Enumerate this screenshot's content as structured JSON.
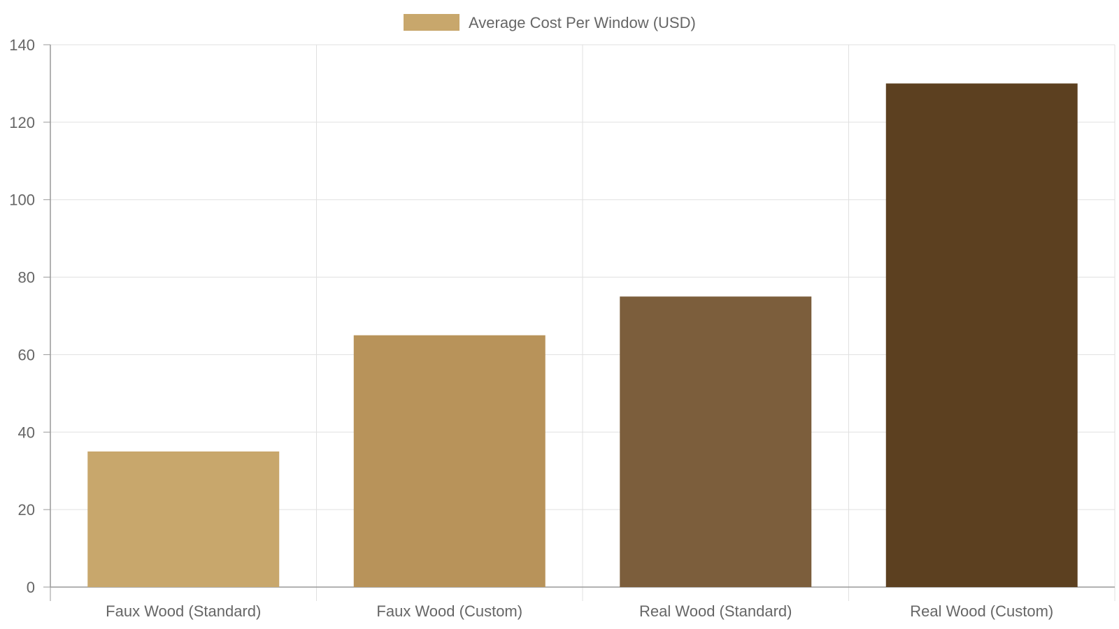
{
  "chart_data": {
    "type": "bar",
    "categories": [
      "Faux Wood (Standard)",
      "Faux Wood (Custom)",
      "Real Wood (Standard)",
      "Real Wood (Custom)"
    ],
    "series": [
      {
        "name": "Average Cost Per Window (USD)",
        "values": [
          35,
          65,
          75,
          130
        ],
        "colors": [
          "#c8a76c",
          "#b8935a",
          "#7c5e3c",
          "#5c4020"
        ]
      }
    ],
    "ylim": [
      0,
      140
    ],
    "yticks": [
      0,
      20,
      40,
      60,
      80,
      100,
      120,
      140
    ],
    "grid": true,
    "legend_position": "top-center",
    "legend_color": "#c8a76c",
    "axis_color": "#999999",
    "grid_color": "#e0e0e0"
  }
}
